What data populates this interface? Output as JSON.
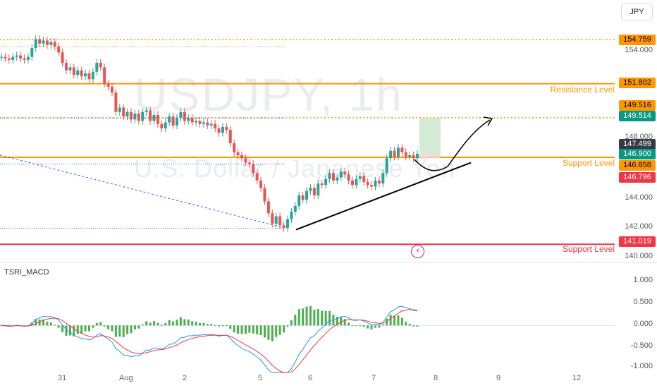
{
  "watermark": {
    "title": "USDJPY, 1h",
    "subtitle": "U.S. Dollar / Japanese Yen"
  },
  "toolbar": {
    "currency_button": "JPY"
  },
  "indicator": {
    "name": "TSRI_MACD"
  },
  "icons": {
    "flash": "lightning-icon"
  },
  "colors": {
    "up": "#26a69a",
    "down": "#ef5350",
    "resistance": "#ff9800",
    "support_red": "#f23645",
    "target": "#089981",
    "current_price": "#363a45",
    "macd_line": "#2196f3",
    "signal_line": "#f23645",
    "hist": "#4caf50"
  },
  "price_axis": {
    "ticks": [
      "154.000",
      "151.802",
      "149.516",
      "148.000",
      "146.000",
      "144.000",
      "142.000",
      "140.000"
    ],
    "tags": [
      {
        "label": "154.759",
        "bg": "#ff9800",
        "fg": "#000000"
      },
      {
        "label": "151.802",
        "bg": "#ff9800",
        "fg": "#000000"
      },
      {
        "label": "149.516",
        "bg": "#ff9800",
        "fg": "#000000"
      },
      {
        "label": "149.514",
        "bg": "#089981",
        "fg": "#ffffff"
      },
      {
        "label": "147.499",
        "bg": "#363a45",
        "fg": "#ffffff"
      },
      {
        "label": "146.900",
        "bg": "#089981",
        "fg": "#ffffff"
      },
      {
        "label": "146.858",
        "bg": "#ff9800",
        "fg": "#000000"
      },
      {
        "label": "146.796",
        "bg": "#f23645",
        "fg": "#ffffff"
      },
      {
        "label": "141.019",
        "bg": "#f23645",
        "fg": "#ffffff"
      }
    ]
  },
  "levels": [
    {
      "label": "Resistance Level",
      "price": 151.802,
      "color": "#ff9800"
    },
    {
      "label": "Support Level",
      "price": 146.858,
      "color": "#ff9800"
    },
    {
      "label": "Support Level",
      "price": 141.019,
      "color": "#f23645"
    }
  ],
  "macd_axis": {
    "ticks": [
      "1.000",
      "0.500",
      "0.000",
      "-0.500",
      "-1.000"
    ]
  },
  "x_axis": {
    "ticks": [
      "31",
      "Aug",
      "2",
      "5",
      "6",
      "7",
      "8",
      "9",
      "12"
    ]
  },
  "chart_data": {
    "type": "candlestick",
    "price_ylim": [
      139.8,
      156.0
    ],
    "candles_close": [
      153.6,
      153.5,
      153.4,
      153.6,
      153.7,
      153.5,
      153.4,
      153.6,
      154.2,
      154.8,
      154.5,
      154.7,
      154.4,
      154.6,
      154.3,
      153.9,
      153.2,
      152.7,
      152.9,
      152.4,
      152.7,
      152.3,
      152.5,
      152.1,
      152.6,
      153.2,
      152.9,
      151.8,
      151.6,
      151.2,
      149.9,
      150.2,
      149.6,
      149.9,
      149.4,
      149.8,
      149.3,
      149.9,
      150.0,
      149.3,
      149.7,
      149.1,
      148.8,
      149.2,
      149.6,
      149.0,
      149.5,
      149.9,
      149.3,
      149.5,
      149.2,
      149.3,
      149.1,
      149.2,
      149.0,
      149.1,
      148.8,
      148.5,
      148.9,
      148.7,
      147.8,
      147.2,
      147.0,
      146.8,
      146.5,
      146.4,
      145.8,
      145.3,
      144.8,
      143.9,
      143.1,
      142.4,
      142.9,
      142.3,
      142.1,
      142.7,
      143.2,
      143.6,
      144.3,
      144.0,
      144.6,
      144.8,
      144.3,
      145.1,
      145.0,
      145.4,
      145.8,
      145.3,
      145.5,
      145.9,
      145.7,
      145.3,
      145.0,
      145.4,
      145.6,
      145.2,
      145.0,
      144.9,
      145.3,
      145.1,
      145.8,
      146.8,
      147.3,
      146.9,
      147.5,
      147.2,
      146.9,
      147.0,
      146.8,
      147.1
    ],
    "channel_top_price": 154.3,
    "trendline_points": [
      [
        142.0
      ],
      [
        146.5
      ]
    ],
    "target_zone": [
      147.0,
      149.514
    ],
    "stop_zone": [
      146.796,
      147.0
    ],
    "macd_ylim": [
      -1.0,
      1.1
    ]
  }
}
